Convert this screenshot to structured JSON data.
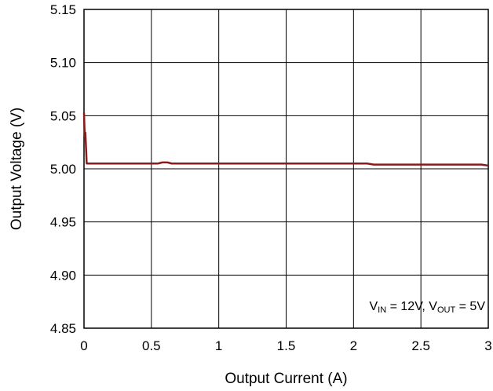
{
  "chart_data": {
    "type": "line",
    "title": "",
    "xlabel": "Output Current (A)",
    "ylabel": "Output Voltage (V)",
    "xlim": [
      0,
      3
    ],
    "ylim": [
      4.85,
      5.15
    ],
    "xticks": [
      "0",
      "0.5",
      "1",
      "1.5",
      "2",
      "2.5",
      "3"
    ],
    "yticks": [
      "4.85",
      "4.90",
      "4.95",
      "5.00",
      "5.05",
      "5.10",
      "5.15"
    ],
    "grid": true,
    "legend": "none",
    "series_color": "#8b1a1a",
    "annotation": {
      "v_in": "V",
      "v_in_sub": "IN",
      "v_in_value": " = 12V, ",
      "v_out": "V",
      "v_out_sub": "OUT",
      "v_out_value": " = 5V"
    },
    "series": [
      {
        "x": [
          0,
          0.003,
          0.006,
          0.01,
          0.015,
          0.02,
          0.03,
          0.05,
          0.1,
          0.3,
          0.55,
          0.58,
          0.62,
          0.65,
          0.7,
          1.0,
          1.5,
          2.0,
          2.1,
          2.15,
          2.5,
          2.8,
          2.9,
          2.95,
          3.0
        ],
        "y": [
          5.053,
          5.04,
          5.03,
          5.034,
          5.02,
          5.005,
          5.005,
          5.005,
          5.005,
          5.005,
          5.005,
          5.006,
          5.006,
          5.005,
          5.005,
          5.005,
          5.005,
          5.005,
          5.005,
          5.004,
          5.004,
          5.004,
          5.004,
          5.004,
          5.003
        ]
      }
    ]
  }
}
